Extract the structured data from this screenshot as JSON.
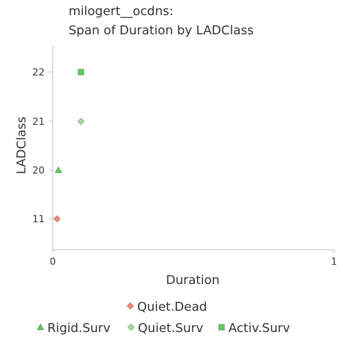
{
  "chart_data": {
    "type": "scatter",
    "title": [
      "milogert__ocdns:",
      "Span of Duration by LADClass"
    ],
    "xlabel": "Duration",
    "ylabel": "LADClass",
    "xlim": [
      0,
      1
    ],
    "x_ticks": [
      "0",
      "1"
    ],
    "y_categories": [
      "11",
      "20",
      "21",
      "22"
    ],
    "grid": false,
    "legend_placement": "bottom",
    "series": [
      {
        "name": "Quiet.Dead",
        "marker": "diamond",
        "color": "#f08c78",
        "points": [
          {
            "x": 0.015,
            "y": "11"
          }
        ]
      },
      {
        "name": "Rigid.Surv",
        "marker": "triangle",
        "color": "#66c766",
        "points": [
          {
            "x": 0.02,
            "y": "20"
          }
        ]
      },
      {
        "name": "Quiet.Surv",
        "marker": "diamond",
        "color": "#a6d9a0",
        "points": [
          {
            "x": 0.1,
            "y": "21"
          }
        ]
      },
      {
        "name": "Activ.Surv",
        "marker": "square",
        "color": "#66c766",
        "points": [
          {
            "x": 0.1,
            "y": "22"
          }
        ]
      }
    ]
  }
}
